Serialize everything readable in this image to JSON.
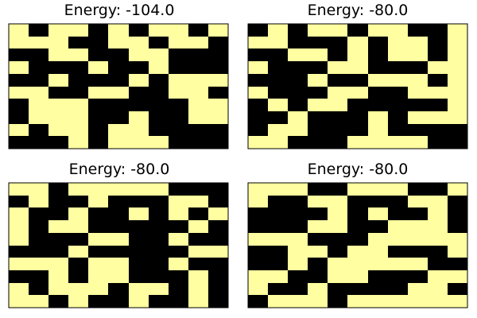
{
  "chart_data": [
    {
      "type": "heatmap",
      "title": "Energy: -104.0",
      "energy": -104.0,
      "colors": {
        "0": "#fffea0",
        "1": "#000000"
      },
      "grid": [
        [
          0,
          1,
          0,
          0,
          1,
          0,
          1,
          0,
          0,
          1,
          0
        ],
        [
          0,
          0,
          0,
          1,
          1,
          0,
          0,
          1,
          0,
          0,
          1
        ],
        [
          1,
          1,
          0,
          0,
          1,
          1,
          0,
          0,
          1,
          1,
          1
        ],
        [
          0,
          1,
          1,
          1,
          0,
          1,
          1,
          0,
          1,
          1,
          1
        ],
        [
          1,
          1,
          0,
          1,
          1,
          1,
          0,
          1,
          0,
          0,
          0
        ],
        [
          0,
          0,
          1,
          1,
          0,
          0,
          1,
          1,
          0,
          0,
          1
        ],
        [
          1,
          0,
          0,
          0,
          1,
          1,
          1,
          1,
          1,
          0,
          0
        ],
        [
          1,
          0,
          0,
          0,
          1,
          1,
          0,
          1,
          1,
          0,
          0
        ],
        [
          0,
          1,
          0,
          0,
          1,
          0,
          0,
          1,
          1,
          1,
          1
        ],
        [
          1,
          1,
          1,
          0,
          1,
          0,
          0,
          0,
          1,
          1,
          1
        ]
      ]
    },
    {
      "type": "heatmap",
      "title": "Energy: -80.0",
      "energy": -80.0,
      "colors": {
        "0": "#fffea0",
        "1": "#000000"
      },
      "grid": [
        [
          1,
          0,
          1,
          0,
          0,
          1,
          0,
          0,
          1,
          1,
          0
        ],
        [
          0,
          0,
          1,
          1,
          1,
          0,
          1,
          0,
          0,
          1,
          0
        ],
        [
          1,
          1,
          0,
          0,
          1,
          0,
          1,
          0,
          0,
          1,
          0
        ],
        [
          0,
          1,
          1,
          1,
          0,
          0,
          1,
          1,
          1,
          0,
          0
        ],
        [
          1,
          1,
          1,
          0,
          1,
          1,
          0,
          0,
          0,
          1,
          0
        ],
        [
          0,
          1,
          1,
          1,
          0,
          0,
          1,
          1,
          0,
          0,
          0
        ],
        [
          1,
          0,
          1,
          0,
          0,
          1,
          1,
          1,
          1,
          1,
          0
        ],
        [
          1,
          1,
          0,
          1,
          1,
          1,
          0,
          1,
          0,
          0,
          0
        ],
        [
          1,
          0,
          0,
          1,
          1,
          1,
          0,
          1,
          1,
          1,
          1
        ],
        [
          0,
          0,
          1,
          1,
          1,
          0,
          0,
          0,
          0,
          1,
          1
        ]
      ]
    },
    {
      "type": "heatmap",
      "title": "Energy: -80.0",
      "energy": -80.0,
      "colors": {
        "0": "#fffea0",
        "1": "#000000"
      },
      "grid": [
        [
          0,
          0,
          1,
          0,
          0,
          0,
          0,
          0,
          1,
          1,
          1
        ],
        [
          1,
          0,
          1,
          1,
          0,
          1,
          1,
          1,
          0,
          0,
          1
        ],
        [
          0,
          1,
          1,
          0,
          1,
          1,
          0,
          1,
          0,
          1,
          0
        ],
        [
          0,
          1,
          0,
          0,
          1,
          1,
          1,
          1,
          1,
          0,
          1
        ],
        [
          0,
          1,
          1,
          1,
          0,
          0,
          1,
          1,
          0,
          1,
          1
        ],
        [
          1,
          1,
          1,
          0,
          1,
          1,
          1,
          1,
          1,
          0,
          0
        ],
        [
          0,
          0,
          0,
          1,
          0,
          0,
          1,
          1,
          0,
          1,
          1
        ],
        [
          1,
          1,
          0,
          1,
          0,
          0,
          1,
          1,
          1,
          0,
          1
        ],
        [
          0,
          1,
          0,
          0,
          0,
          1,
          0,
          0,
          1,
          0,
          1
        ],
        [
          0,
          0,
          1,
          0,
          1,
          1,
          0,
          1,
          1,
          0,
          1
        ]
      ]
    },
    {
      "type": "heatmap",
      "title": "Energy: -80.0",
      "energy": -80.0,
      "colors": {
        "0": "#fffea0",
        "1": "#000000"
      },
      "grid": [
        [
          0,
          0,
          0,
          1,
          1,
          0,
          0,
          0,
          1,
          1,
          0
        ],
        [
          0,
          1,
          1,
          0,
          0,
          1,
          1,
          1,
          0,
          0,
          1
        ],
        [
          1,
          1,
          1,
          1,
          0,
          1,
          0,
          1,
          1,
          0,
          1
        ],
        [
          1,
          1,
          1,
          0,
          0,
          1,
          1,
          0,
          0,
          0,
          1
        ],
        [
          0,
          0,
          0,
          1,
          1,
          1,
          0,
          0,
          0,
          0,
          0
        ],
        [
          1,
          1,
          0,
          0,
          1,
          0,
          0,
          1,
          1,
          1,
          0
        ],
        [
          1,
          1,
          0,
          1,
          0,
          0,
          0,
          0,
          0,
          1,
          1
        ],
        [
          0,
          0,
          1,
          1,
          0,
          0,
          1,
          1,
          1,
          0,
          0
        ],
        [
          0,
          1,
          1,
          0,
          1,
          1,
          1,
          1,
          0,
          0,
          1
        ],
        [
          1,
          0,
          0,
          0,
          1,
          0,
          0,
          0,
          0,
          0,
          0
        ]
      ]
    }
  ]
}
